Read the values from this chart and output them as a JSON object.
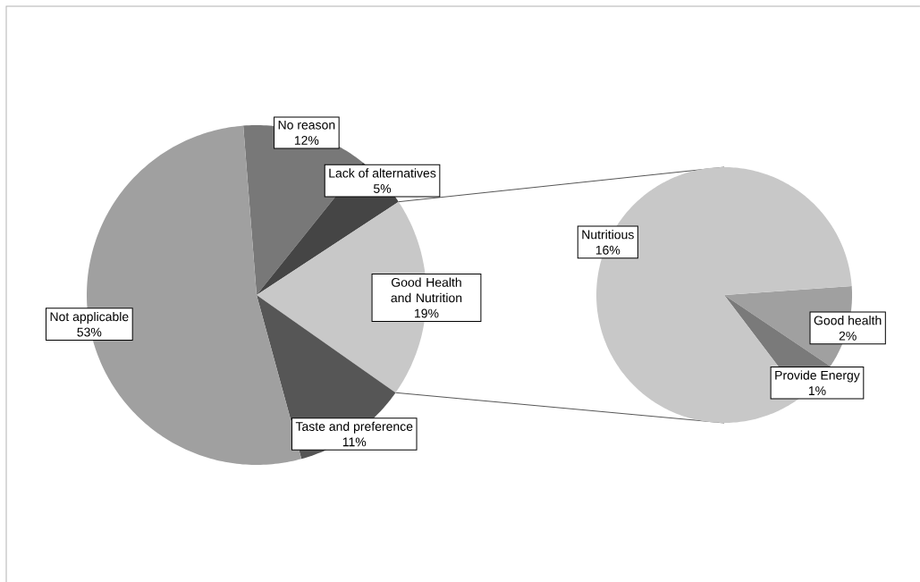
{
  "chart_data": [
    {
      "type": "pie",
      "categories": [
        "No reason",
        "Lack of alternatives",
        "Good Health and Nutrition",
        "Taste and preference",
        "Not applicable"
      ],
      "values": [
        12,
        5,
        19,
        11,
        53
      ],
      "value_labels": [
        "12%",
        "5%",
        "19%",
        "11%",
        "53%"
      ],
      "colors": [
        "#787878",
        "#454545",
        "#c8c8c8",
        "#565656",
        "#a0a0a0"
      ]
    },
    {
      "type": "pie",
      "categories": [
        "Good health",
        "Provide Energy",
        "Nutritious"
      ],
      "values": [
        2,
        1,
        16
      ],
      "value_labels": [
        "2%",
        "1%",
        "16%"
      ],
      "colors": [
        "#a0a0a0",
        "#7a7a7a",
        "#c8c8c8"
      ]
    }
  ]
}
